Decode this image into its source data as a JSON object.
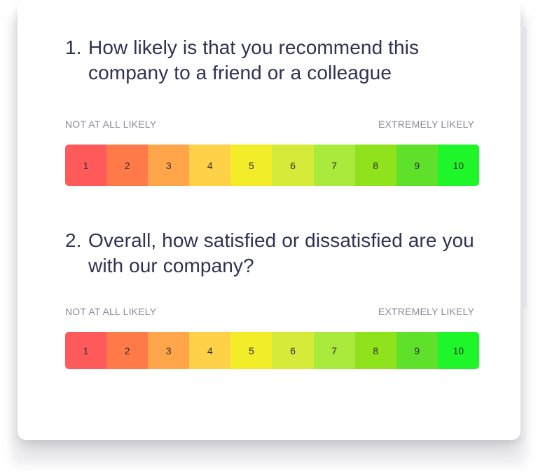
{
  "questions": [
    {
      "number": "1.",
      "title": "How likely is that you recommend this company to a friend or a colleague",
      "low_label": "NOT AT ALL LIKELY",
      "high_label": "EXTREMELY LIKELY",
      "options": [
        "1",
        "2",
        "3",
        "4",
        "5",
        "6",
        "7",
        "8",
        "9",
        "10"
      ]
    },
    {
      "number": "2.",
      "title": "Overall, how satisfied or dissatisfied are you with our company?",
      "low_label": "NOT AT ALL LIKELY",
      "high_label": "EXTREMELY LIKELY",
      "options": [
        "1",
        "2",
        "3",
        "4",
        "5",
        "6",
        "7",
        "8",
        "9",
        "10"
      ]
    }
  ],
  "colors": {
    "scale": [
      "#ff5a5a",
      "#ff7a48",
      "#ffa64a",
      "#ffd148",
      "#f3ec28",
      "#d6ea3a",
      "#a9ea3c",
      "#8fe31c",
      "#5fe02a",
      "#1ef62a"
    ],
    "title_text": "#2f3252",
    "label_text": "#8a8b95"
  }
}
